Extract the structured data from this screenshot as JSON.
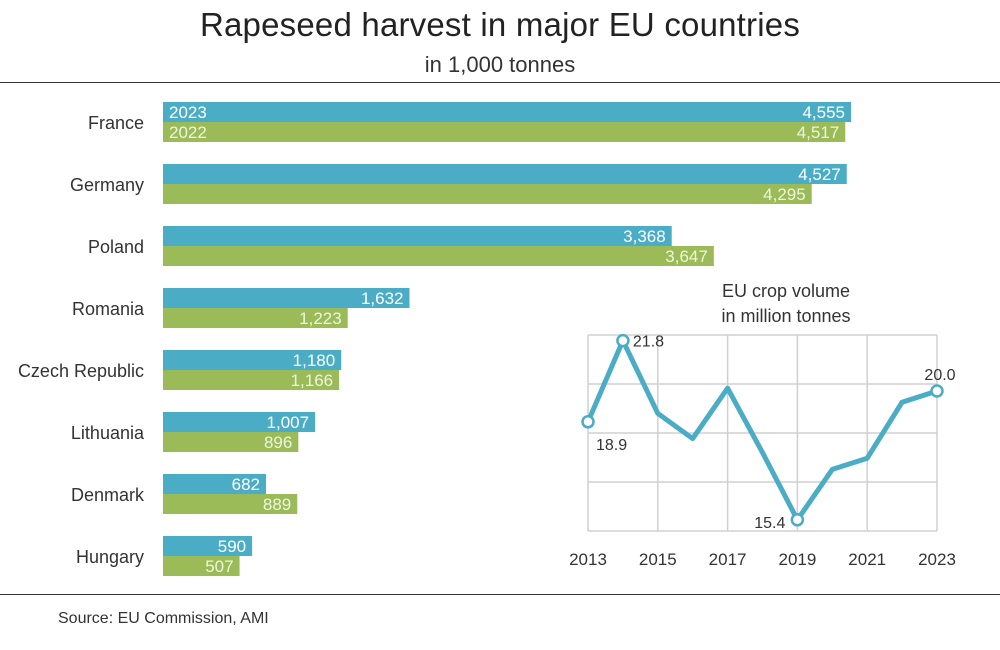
{
  "title": "Rapeseed harvest in major EU countries",
  "subtitle": "in 1,000 tonnes",
  "source": "Source:  EU Commission, AMI",
  "colors": {
    "series_2023": "#4bacc6",
    "series_2022": "#9bbb59",
    "inset_line": "#4bacc6",
    "grid": "#d0d0d0"
  },
  "chart_data": [
    {
      "type": "bar",
      "orientation": "horizontal",
      "categories": [
        "France",
        "Germany",
        "Poland",
        "Romania",
        "Czech Republic",
        "Lithuania",
        "Denmark",
        "Hungary"
      ],
      "series": [
        {
          "name": "2023",
          "values": [
            4555,
            4527,
            3368,
            1632,
            1180,
            1007,
            682,
            590
          ],
          "labels": [
            "4,555",
            "4,527",
            "3,368",
            "1,632",
            "1,180",
            "1,007",
            "682",
            "590"
          ]
        },
        {
          "name": "2022",
          "values": [
            4517,
            4295,
            3647,
            1223,
            1166,
            896,
            889,
            507
          ],
          "labels": [
            "4,517",
            "4,295",
            "3,647",
            "1,223",
            "1,166",
            "896",
            "889",
            "507"
          ]
        }
      ],
      "xlim": [
        0,
        4555
      ],
      "grid": false
    },
    {
      "type": "line",
      "title": "EU crop volume in million tonnes",
      "title_lines": [
        "EU crop volume",
        "in million tonnes"
      ],
      "x": [
        2013,
        2014,
        2015,
        2016,
        2017,
        2018,
        2019,
        2020,
        2021,
        2022,
        2023
      ],
      "y": [
        18.9,
        21.8,
        19.2,
        18.3,
        20.1,
        17.8,
        15.4,
        17.2,
        17.6,
        19.6,
        20.0
      ],
      "xticks": [
        "2013",
        "2015",
        "2017",
        "2019",
        "2021",
        "2023"
      ],
      "point_labels": [
        {
          "index": 0,
          "text": "18.9"
        },
        {
          "index": 1,
          "text": "21.8"
        },
        {
          "index": 6,
          "text": "15.4"
        },
        {
          "index": 10,
          "text": "20.0"
        }
      ],
      "ylim": [
        15,
        22
      ],
      "grid": true
    }
  ]
}
